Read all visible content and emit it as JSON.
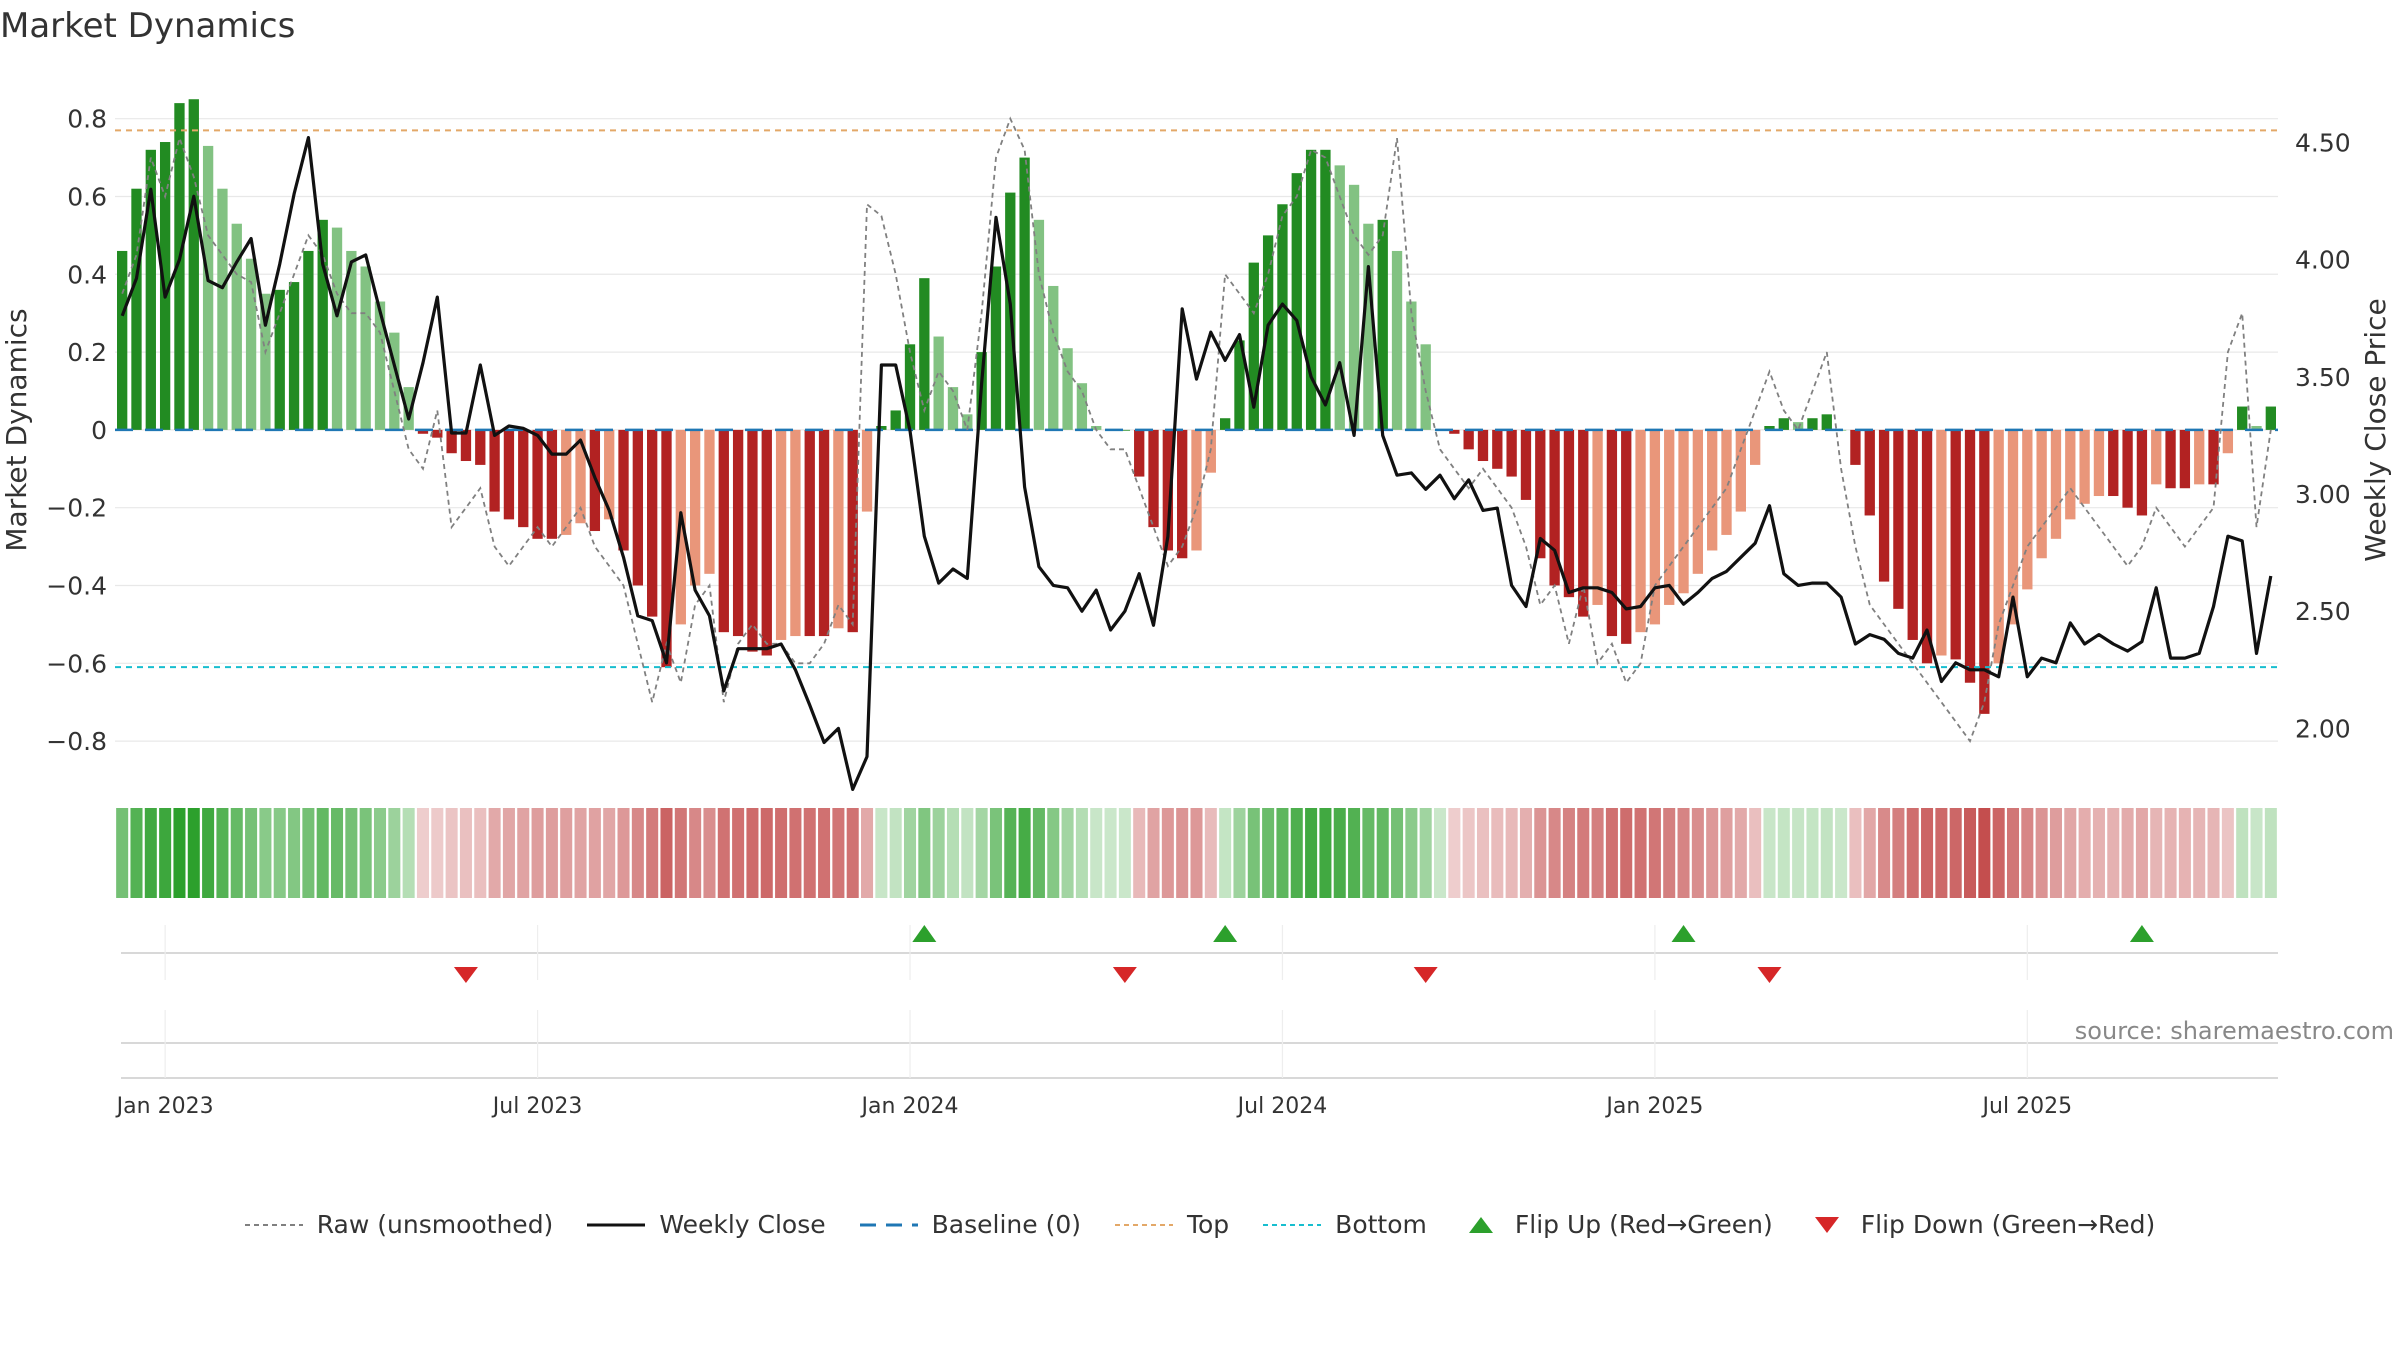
{
  "title": "Market Dynamics",
  "source": "source: sharemaestro.com",
  "colors": {
    "dark_green": "#228b22",
    "light_green": "#82c282",
    "dark_red": "#b22222",
    "light_red": "#e9967a",
    "raw_line": "#808080",
    "close_line": "#111111",
    "baseline": "#1f77b4",
    "top_line": "#e3a868",
    "bottom_line": "#17becf",
    "flip_up": "#2ca02c",
    "flip_down": "#d62728"
  },
  "chart_data": {
    "type": "bar",
    "title": "Market Dynamics",
    "ylabel": "Market Dynamics",
    "y2label": "Weekly Close Price",
    "ylim": [
      -0.9,
      0.92
    ],
    "y2lim": [
      1.78,
      4.8
    ],
    "yticks": [
      {
        "value": 0.8,
        "label": "0.8"
      },
      {
        "value": 0.6,
        "label": "0.6"
      },
      {
        "value": 0.4,
        "label": "0.4"
      },
      {
        "value": 0.2,
        "label": "0.2"
      },
      {
        "value": 0,
        "label": "0"
      },
      {
        "value": -0.2,
        "label": "−0.2"
      },
      {
        "value": -0.4,
        "label": "−0.4"
      },
      {
        "value": -0.6,
        "label": "−0.6"
      },
      {
        "value": -0.8,
        "label": "−0.8"
      }
    ],
    "y2ticks": [
      {
        "value": 4.5,
        "label": "4.50"
      },
      {
        "value": 4.0,
        "label": "4.00"
      },
      {
        "value": 3.5,
        "label": "3.50"
      },
      {
        "value": 3.0,
        "label": "3.00"
      },
      {
        "value": 2.5,
        "label": "2.50"
      },
      {
        "value": 2.0,
        "label": "2.00"
      }
    ],
    "xticks": [
      {
        "index": 3,
        "label": "Jan 2023"
      },
      {
        "index": 29,
        "label": "Jul 2023"
      },
      {
        "index": 55,
        "label": "Jan 2024"
      },
      {
        "index": 81,
        "label": "Jul 2024"
      },
      {
        "index": 107,
        "label": "Jan 2025"
      },
      {
        "index": 133,
        "label": "Jul 2025"
      }
    ],
    "top": 0.77,
    "bottom": -0.61,
    "grid": true,
    "legend_position": "bottom-center",
    "legend": [
      "Raw (unsmoothed)",
      "Weekly Close",
      "Baseline (0)",
      "Top",
      "Bottom",
      "Flip Up (Red→Green)",
      "Flip Down (Green→Red)"
    ],
    "dynamics": [
      0.46,
      0.62,
      0.72,
      0.74,
      0.84,
      0.85,
      0.73,
      0.62,
      0.53,
      0.44,
      0.35,
      0.36,
      0.38,
      0.46,
      0.54,
      0.52,
      0.46,
      0.42,
      0.33,
      0.25,
      0.11,
      -0.01,
      -0.02,
      -0.06,
      -0.08,
      -0.09,
      -0.21,
      -0.23,
      -0.25,
      -0.28,
      -0.28,
      -0.27,
      -0.24,
      -0.26,
      -0.23,
      -0.31,
      -0.4,
      -0.48,
      -0.61,
      -0.5,
      -0.4,
      -0.37,
      -0.52,
      -0.53,
      -0.57,
      -0.58,
      -0.54,
      -0.53,
      -0.53,
      -0.53,
      -0.51,
      -0.52,
      -0.21,
      0.01,
      0.05,
      0.22,
      0.39,
      0.24,
      0.11,
      0.04,
      0.2,
      0.42,
      0.61,
      0.7,
      0.54,
      0.37,
      0.21,
      0.12,
      0.01,
      0.0,
      0.0,
      -0.12,
      -0.25,
      -0.31,
      -0.33,
      -0.31,
      -0.11,
      0.03,
      0.23,
      0.43,
      0.5,
      0.58,
      0.66,
      0.72,
      0.72,
      0.68,
      0.63,
      0.53,
      0.54,
      0.46,
      0.33,
      0.22,
      0.0,
      -0.01,
      -0.05,
      -0.08,
      -0.1,
      -0.12,
      -0.18,
      -0.33,
      -0.4,
      -0.43,
      -0.48,
      -0.45,
      -0.53,
      -0.55,
      -0.52,
      -0.5,
      -0.45,
      -0.42,
      -0.37,
      -0.31,
      -0.27,
      -0.21,
      -0.09,
      0.01,
      0.03,
      0.02,
      0.03,
      0.04,
      0.0,
      -0.09,
      -0.22,
      -0.39,
      -0.46,
      -0.54,
      -0.6,
      -0.58,
      -0.59,
      -0.65,
      -0.73,
      -0.6,
      -0.5,
      -0.41,
      -0.33,
      -0.28,
      -0.23,
      -0.19,
      -0.17,
      -0.17,
      -0.2,
      -0.22,
      -0.14,
      -0.15,
      -0.15,
      -0.14,
      -0.14,
      -0.06,
      0.06,
      0.01,
      0.06
    ],
    "raw": [
      0.35,
      0.45,
      0.7,
      0.6,
      0.75,
      0.65,
      0.5,
      0.45,
      0.4,
      0.38,
      0.2,
      0.3,
      0.4,
      0.5,
      0.45,
      0.35,
      0.3,
      0.3,
      0.25,
      0.1,
      -0.05,
      -0.1,
      0.05,
      -0.25,
      -0.2,
      -0.15,
      -0.3,
      -0.35,
      -0.3,
      -0.25,
      -0.3,
      -0.25,
      -0.2,
      -0.3,
      -0.35,
      -0.4,
      -0.55,
      -0.7,
      -0.55,
      -0.65,
      -0.45,
      -0.4,
      -0.7,
      -0.55,
      -0.5,
      -0.55,
      -0.55,
      -0.6,
      -0.6,
      -0.55,
      -0.45,
      -0.5,
      0.58,
      0.55,
      0.4,
      0.2,
      0.05,
      0.15,
      0.1,
      0.0,
      0.3,
      0.7,
      0.8,
      0.72,
      0.4,
      0.25,
      0.15,
      0.1,
      0.0,
      -0.05,
      -0.05,
      -0.15,
      -0.25,
      -0.35,
      -0.3,
      -0.2,
      -0.05,
      0.4,
      0.35,
      0.3,
      0.4,
      0.55,
      0.6,
      0.72,
      0.7,
      0.6,
      0.5,
      0.45,
      0.5,
      0.75,
      0.3,
      0.1,
      -0.05,
      -0.1,
      -0.15,
      -0.1,
      -0.15,
      -0.2,
      -0.3,
      -0.45,
      -0.4,
      -0.55,
      -0.4,
      -0.6,
      -0.55,
      -0.65,
      -0.6,
      -0.4,
      -0.35,
      -0.3,
      -0.25,
      -0.2,
      -0.15,
      -0.05,
      0.05,
      0.15,
      0.05,
      0.0,
      0.1,
      0.2,
      -0.1,
      -0.3,
      -0.45,
      -0.5,
      -0.55,
      -0.6,
      -0.65,
      -0.7,
      -0.75,
      -0.8,
      -0.7,
      -0.5,
      -0.4,
      -0.3,
      -0.25,
      -0.2,
      -0.15,
      -0.2,
      -0.25,
      -0.3,
      -0.35,
      -0.3,
      -0.2,
      -0.25,
      -0.3,
      -0.25,
      -0.2,
      0.2,
      0.3,
      -0.25,
      0.0
    ],
    "close": [
      3.76,
      3.92,
      4.3,
      3.84,
      4.0,
      4.27,
      3.91,
      3.88,
      3.99,
      4.09,
      3.72,
      3.98,
      4.28,
      4.52,
      3.98,
      3.76,
      3.99,
      4.02,
      3.78,
      3.55,
      3.32,
      3.56,
      3.84,
      3.26,
      3.26,
      3.55,
      3.25,
      3.29,
      3.28,
      3.25,
      3.17,
      3.17,
      3.23,
      3.07,
      2.93,
      2.73,
      2.48,
      2.46,
      2.28,
      2.92,
      2.59,
      2.48,
      2.16,
      2.34,
      2.34,
      2.34,
      2.36,
      2.25,
      2.1,
      1.94,
      2.0,
      1.74,
      1.88,
      3.55,
      3.55,
      3.27,
      2.82,
      2.62,
      2.68,
      2.64,
      3.47,
      4.18,
      3.81,
      3.03,
      2.69,
      2.61,
      2.6,
      2.5,
      2.59,
      2.42,
      2.5,
      2.66,
      2.44,
      2.82,
      3.79,
      3.49,
      3.69,
      3.57,
      3.68,
      3.37,
      3.72,
      3.81,
      3.74,
      3.5,
      3.38,
      3.56,
      3.25,
      3.97,
      3.25,
      3.08,
      3.09,
      3.02,
      3.08,
      2.98,
      3.06,
      2.93,
      2.94,
      2.61,
      2.52,
      2.81,
      2.76,
      2.58,
      2.6,
      2.6,
      2.58,
      2.51,
      2.52,
      2.6,
      2.61,
      2.53,
      2.58,
      2.64,
      2.67,
      2.73,
      2.79,
      2.95,
      2.66,
      2.61,
      2.62,
      2.62,
      2.56,
      2.36,
      2.4,
      2.38,
      2.32,
      2.3,
      2.42,
      2.2,
      2.28,
      2.25,
      2.25,
      2.22,
      2.56,
      2.22,
      2.3,
      2.28,
      2.45,
      2.36,
      2.4,
      2.36,
      2.33,
      2.37,
      2.6,
      2.3,
      2.3,
      2.32,
      2.52,
      2.82,
      2.8,
      2.32,
      2.65
    ],
    "flip_up": [
      56,
      77,
      109,
      141
    ],
    "flip_down": [
      24,
      70,
      91,
      115
    ]
  }
}
